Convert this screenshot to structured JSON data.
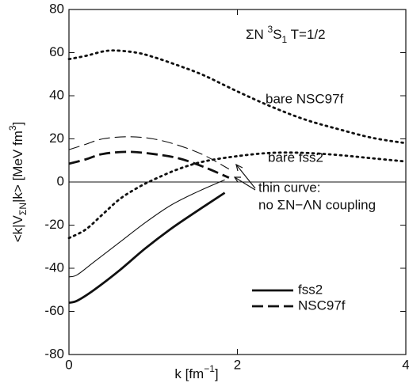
{
  "chart_data": {
    "type": "line",
    "xlabel": [
      "k  [fm",
      "−1",
      "]"
    ],
    "ylabel": [
      "<k|V",
      "ΣN",
      "|k>  [MeV fm",
      "3",
      "]"
    ],
    "panel_label": [
      "ΣN ",
      "3",
      "S",
      "1",
      " T=1/2"
    ],
    "note": [
      "thin curve:",
      "no ΣN−ΛN coupling"
    ],
    "xlim": [
      0,
      4
    ],
    "xticks": [
      0,
      2,
      4
    ],
    "ylim": [
      -80,
      80
    ],
    "yticks": [
      -80,
      -60,
      -40,
      -20,
      0,
      20,
      40,
      60,
      80
    ],
    "hline": 0,
    "series": [
      {
        "name": "bare NSC97f",
        "style": "dotted",
        "weight": "thick",
        "color": "#111",
        "x": [
          0,
          0.2,
          0.4,
          0.55,
          0.8,
          1.0,
          1.3,
          1.6,
          2.0,
          2.4,
          2.8,
          3.2,
          3.6,
          4.0
        ],
        "values": [
          57,
          58.5,
          60.5,
          61,
          60,
          58,
          54,
          49.5,
          42,
          35,
          29,
          24.5,
          20.5,
          18
        ]
      },
      {
        "name": "bare fss2",
        "style": "dotted",
        "weight": "thick",
        "color": "#111",
        "x": [
          0,
          0.2,
          0.4,
          0.6,
          0.8,
          1.0,
          1.3,
          1.6,
          2.0,
          2.4,
          2.8,
          3.2,
          3.6,
          4.0
        ],
        "values": [
          -26,
          -22,
          -15,
          -8,
          -3,
          1,
          6,
          9.5,
          12,
          13.5,
          13.5,
          12.5,
          11,
          9.5
        ]
      },
      {
        "name": "fss2",
        "style": "solid",
        "weight": "thick",
        "color": "#111",
        "x": [
          0,
          0.1,
          0.3,
          0.6,
          0.9,
          1.2,
          1.5,
          1.85
        ],
        "values": [
          -56,
          -55,
          -50,
          -41,
          -31,
          -22,
          -14,
          -5
        ]
      },
      {
        "style": "solid",
        "weight": "thin",
        "color": "#111",
        "x": [
          0,
          0.1,
          0.3,
          0.6,
          0.9,
          1.2,
          1.5,
          1.85
        ],
        "values": [
          -44,
          -43,
          -37,
          -28,
          -19,
          -11,
          -5,
          1
        ]
      },
      {
        "name": "NSC97f",
        "style": "dashed",
        "weight": "thick",
        "color": "#111",
        "x": [
          0,
          0.2,
          0.4,
          0.7,
          1.0,
          1.3,
          1.6,
          1.9
        ],
        "values": [
          8.5,
          10.5,
          13,
          14,
          13,
          11,
          7,
          2
        ]
      },
      {
        "style": "dashed",
        "weight": "thin",
        "color": "#111",
        "x": [
          0,
          0.2,
          0.4,
          0.7,
          1.0,
          1.3,
          1.6,
          1.9
        ],
        "values": [
          15,
          17.5,
          20,
          21,
          20,
          17,
          12.5,
          6
        ]
      }
    ]
  }
}
